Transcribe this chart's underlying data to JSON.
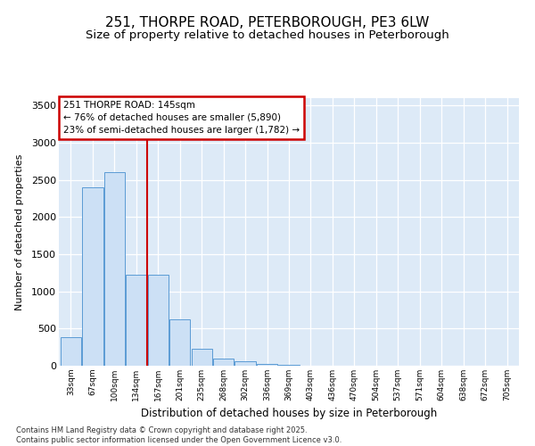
{
  "title_line1": "251, THORPE ROAD, PETERBOROUGH, PE3 6LW",
  "title_line2": "Size of property relative to detached houses in Peterborough",
  "xlabel": "Distribution of detached houses by size in Peterborough",
  "ylabel": "Number of detached properties",
  "categories": [
    "33sqm",
    "67sqm",
    "100sqm",
    "134sqm",
    "167sqm",
    "201sqm",
    "235sqm",
    "268sqm",
    "302sqm",
    "336sqm",
    "369sqm",
    "403sqm",
    "436sqm",
    "470sqm",
    "504sqm",
    "537sqm",
    "571sqm",
    "604sqm",
    "638sqm",
    "672sqm",
    "705sqm"
  ],
  "values": [
    390,
    2400,
    2600,
    1220,
    1220,
    620,
    230,
    100,
    55,
    30,
    10,
    5,
    0,
    0,
    0,
    0,
    0,
    0,
    0,
    0,
    0
  ],
  "bar_color": "#cce0f5",
  "bar_edge_color": "#5b9bd5",
  "vline_color": "#cc0000",
  "vline_pos": 3.5,
  "annotation_title": "251 THORPE ROAD: 145sqm",
  "annotation_line1": "← 76% of detached houses are smaller (5,890)",
  "annotation_line2": "23% of semi-detached houses are larger (1,782) →",
  "annotation_box_color": "#cc0000",
  "ylim": [
    0,
    3600
  ],
  "yticks": [
    0,
    500,
    1000,
    1500,
    2000,
    2500,
    3000,
    3500
  ],
  "grid_color": "#d0dce8",
  "plot_bg_color": "#ddeaf7",
  "footer_line1": "Contains HM Land Registry data © Crown copyright and database right 2025.",
  "footer_line2": "Contains public sector information licensed under the Open Government Licence v3.0.",
  "title_fontsize": 11,
  "subtitle_fontsize": 9.5
}
